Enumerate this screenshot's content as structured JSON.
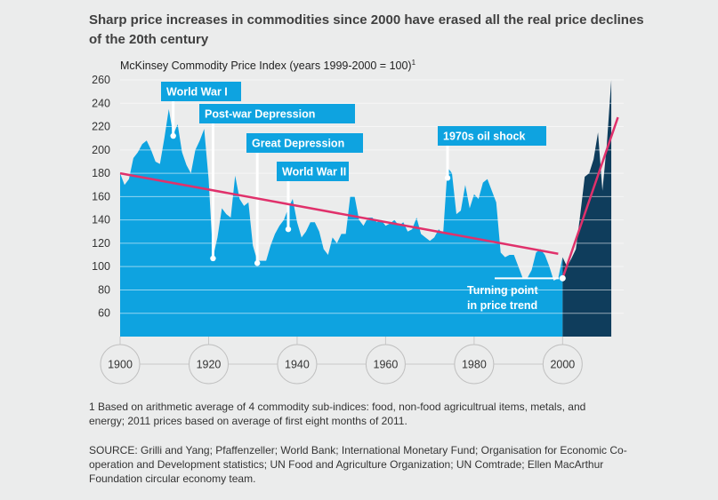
{
  "title": "Sharp price increases in commodities since 2000 have erased all the real price declines of the 20th century",
  "chart_data": {
    "type": "area",
    "ylabel": "McKinsey Commodity Price Index (years 1999-2000 = 100)",
    "ylabel_note": "1",
    "ylim": [
      40,
      260
    ],
    "xlim": [
      1900,
      2013
    ],
    "yticks": [
      60,
      80,
      100,
      120,
      140,
      160,
      180,
      200,
      220,
      240,
      260
    ],
    "xticks": [
      1900,
      1920,
      1940,
      1960,
      1980,
      2000
    ],
    "colors": {
      "pre2000": "#0ea3e0",
      "post2000": "#0f3d5c",
      "trend": "#e0316b",
      "grid": "#ffffff"
    },
    "series": [
      {
        "name": "Commodity price index",
        "x": [
          1900,
          1901,
          1902,
          1903,
          1904,
          1905,
          1906,
          1907,
          1908,
          1909,
          1910,
          1911,
          1912,
          1913,
          1914,
          1915,
          1916,
          1917,
          1918,
          1919,
          1920,
          1921,
          1922,
          1923,
          1924,
          1925,
          1926,
          1927,
          1928,
          1929,
          1930,
          1931,
          1932,
          1933,
          1934,
          1935,
          1936,
          1937,
          1938,
          1939,
          1940,
          1941,
          1942,
          1943,
          1944,
          1945,
          1946,
          1947,
          1948,
          1949,
          1950,
          1951,
          1952,
          1953,
          1954,
          1955,
          1956,
          1957,
          1958,
          1959,
          1960,
          1961,
          1962,
          1963,
          1964,
          1965,
          1966,
          1967,
          1968,
          1969,
          1970,
          1971,
          1972,
          1973,
          1974,
          1975,
          1976,
          1977,
          1978,
          1979,
          1980,
          1981,
          1982,
          1983,
          1984,
          1985,
          1986,
          1987,
          1988,
          1989,
          1990,
          1991,
          1992,
          1993,
          1994,
          1995,
          1996,
          1997,
          1998,
          1999,
          2000,
          2001,
          2002,
          2003,
          2004,
          2005,
          2006,
          2007,
          2008,
          2009,
          2010,
          2011
        ],
        "values": [
          180,
          170,
          175,
          193,
          198,
          205,
          208,
          200,
          190,
          188,
          210,
          235,
          213,
          222,
          198,
          187,
          180,
          200,
          208,
          218,
          175,
          108,
          125,
          150,
          145,
          142,
          178,
          158,
          152,
          155,
          118,
          105,
          105,
          105,
          118,
          128,
          135,
          140,
          150,
          158,
          138,
          125,
          130,
          138,
          138,
          130,
          115,
          110,
          125,
          120,
          128,
          128,
          160,
          160,
          140,
          135,
          142,
          142,
          138,
          140,
          135,
          137,
          140,
          135,
          138,
          130,
          132,
          142,
          128,
          125,
          122,
          125,
          132,
          128,
          185,
          180,
          145,
          148,
          170,
          150,
          162,
          158,
          172,
          175,
          165,
          155,
          112,
          108,
          110,
          110,
          100,
          90,
          90,
          97,
          112,
          115,
          110,
          100,
          88,
          90,
          108,
          100,
          107,
          115,
          145,
          177,
          180,
          192,
          215,
          165,
          205,
          260
        ]
      }
    ],
    "trend_lines": [
      {
        "name": "20th century decline",
        "x": [
          1900,
          1999
        ],
        "y": [
          180,
          111
        ]
      },
      {
        "name": "Post-2000 increase",
        "x": [
          2000,
          2012.5
        ],
        "y": [
          90,
          228
        ]
      }
    ],
    "turning_point": {
      "x": 2000,
      "y": 90
    },
    "annotations": [
      {
        "label": "World War I",
        "x": 1912,
        "y": 212
      },
      {
        "label": "Post-war  Depression",
        "x": 1921,
        "y": 107
      },
      {
        "label": "Great Depression",
        "x": 1931,
        "y": 103
      },
      {
        "label": "World War II",
        "x": 1938,
        "y": 132
      },
      {
        "label": "1970s oil shock",
        "x": 1974,
        "y": 176
      },
      {
        "label": "Turning point in price trend",
        "lines": [
          "Turning point",
          "in price trend"
        ],
        "x": 2000,
        "y": 90
      }
    ]
  },
  "footnote": "1 Based on arithmetic average of 4 commodity sub-indices: food, non-food agricultrual items, metals, and energy; 2011 prices based on average of first eight months of 2011.",
  "source": "SOURCE: Grilli and Yang; Pfaffenzeller; World Bank; International Monetary Fund; Organisation for Economic Co-operation and Development statistics; UN Food and Agriculture Organization; UN Comtrade; Ellen MacArthur Foundation circular economy team."
}
